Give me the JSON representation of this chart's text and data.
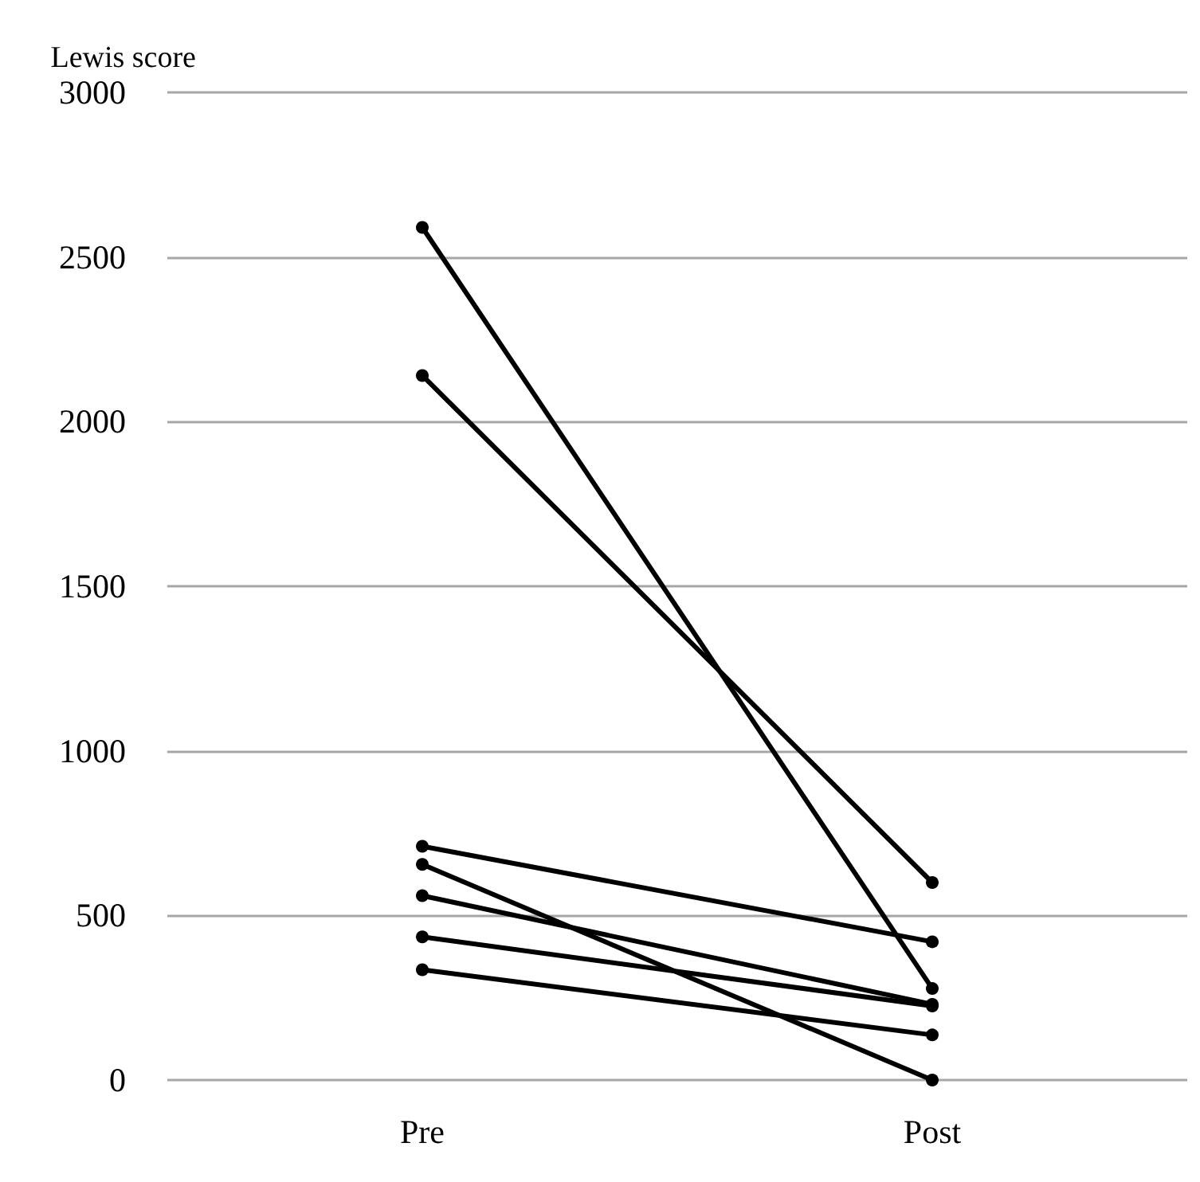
{
  "chart_data": {
    "type": "line",
    "ylabel": "Lewis score",
    "categories": [
      "Pre",
      "Post"
    ],
    "series": [
      {
        "color": "#000000",
        "values": [
          2590,
          278
        ]
      },
      {
        "color": "#000000",
        "values": [
          2140,
          600
        ]
      },
      {
        "color": "#000000",
        "values": [
          710,
          420
        ]
      },
      {
        "color": "#000000",
        "values": [
          655,
          0
        ]
      },
      {
        "color": "#000000",
        "values": [
          560,
          230
        ]
      },
      {
        "color": "#000000",
        "values": [
          435,
          225
        ]
      },
      {
        "color": "#000000",
        "values": [
          335,
          137
        ]
      }
    ],
    "ylim": [
      0,
      3000
    ],
    "yticks": [
      0,
      500,
      1000,
      1500,
      2000,
      2500,
      3000
    ],
    "grid": "y",
    "marker": "circle",
    "line_style": "solid"
  }
}
